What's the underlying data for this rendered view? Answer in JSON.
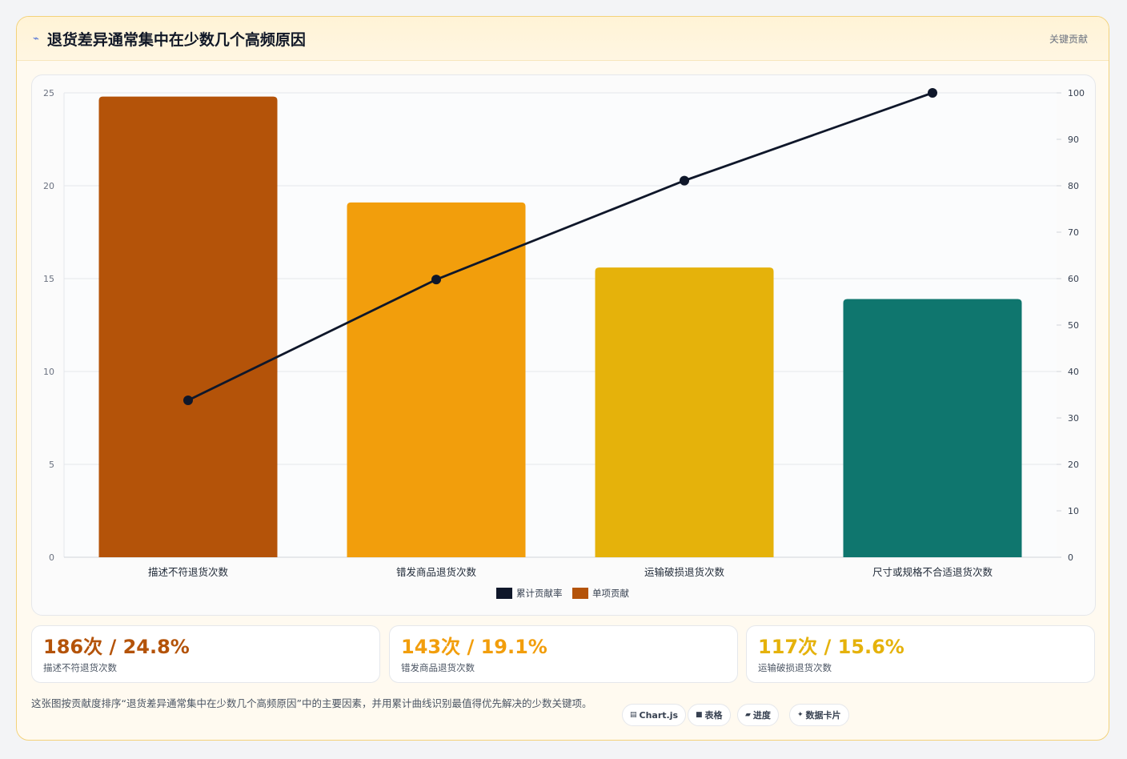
{
  "header": {
    "icon": "spark-icon",
    "title": "退货差异通常集中在少数几个高频原因",
    "link": "关键贡献"
  },
  "colors": {
    "bars": [
      "#b45309",
      "#f29e0c",
      "#e5b20b",
      "#0f766e"
    ],
    "line": "#0f172a",
    "grid": "#e5e7eb"
  },
  "chart_data": {
    "type": "bar",
    "categories": [
      "描述不符退货次数",
      "错发商品退货次数",
      "运输破损退货次数",
      "尺寸或规格不合适退货次数"
    ],
    "series": [
      {
        "name": "单项贡献",
        "type": "bar",
        "axis": "left",
        "values": [
          24.8,
          19.1,
          15.6,
          13.9
        ]
      },
      {
        "name": "累计贡献率",
        "type": "line",
        "axis": "right",
        "values": [
          33.8,
          59.8,
          81.1,
          100
        ]
      }
    ],
    "y_left": {
      "min": 0,
      "max": 25,
      "ticks": [
        "0",
        "5",
        "10",
        "15",
        "20",
        "25"
      ]
    },
    "y_right": {
      "min": 0,
      "max": 100,
      "ticks": [
        "0",
        "10",
        "20",
        "30",
        "40",
        "50",
        "60",
        "70",
        "80",
        "90",
        "100"
      ]
    },
    "legend": {
      "placement": "bottom",
      "items": [
        "累计贡献率",
        "单项贡献"
      ]
    },
    "grid": true
  },
  "stats": [
    {
      "value": "186次 / 24.8%",
      "label": "描述不符退货次数",
      "color": "#b45309"
    },
    {
      "value": "143次 / 19.1%",
      "label": "错发商品退货次数",
      "color": "#f29e0c"
    },
    {
      "value": "117次 / 15.6%",
      "label": "运输破损退货次数",
      "color": "#e5b20b"
    }
  ],
  "footer": {
    "description": "这张图按贡献度排序“退货差异通常集中在少数几个高频原因”中的主要因素，并用累计曲线识别最值得优先解决的少数关键项。",
    "chips": [
      {
        "icon": "▤",
        "label": "Chart.js"
      },
      {
        "icon": "■",
        "label": "表格"
      },
      {
        "icon": "▰",
        "label": "进度"
      },
      {
        "icon": "✦",
        "label": "数据卡片"
      }
    ]
  }
}
